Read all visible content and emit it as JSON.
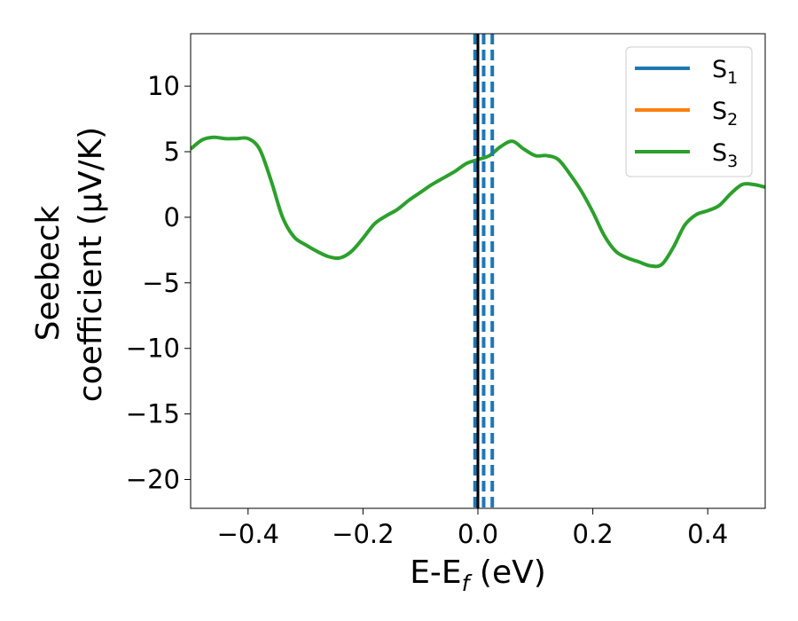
{
  "chart_data": {
    "type": "line",
    "title": "",
    "xlabel": {
      "main": "E-E",
      "sub": "f",
      "suffix": " (eV)"
    },
    "ylabel": {
      "line1": "Seebeck",
      "line2": "coefficient  (μV/K)"
    },
    "xlim": [
      -0.5,
      0.5
    ],
    "ylim": [
      -22.2,
      14.0
    ],
    "xticks": [
      {
        "value": -0.4,
        "label": "−0.4"
      },
      {
        "value": -0.2,
        "label": "−0.2"
      },
      {
        "value": 0.0,
        "label": "0.0"
      },
      {
        "value": 0.2,
        "label": "0.2"
      },
      {
        "value": 0.4,
        "label": "0.4"
      }
    ],
    "yticks": [
      {
        "value": 10,
        "label": "10"
      },
      {
        "value": 5,
        "label": "5"
      },
      {
        "value": 0,
        "label": "0"
      },
      {
        "value": -5,
        "label": "−5"
      },
      {
        "value": -10,
        "label": "−10"
      },
      {
        "value": -15,
        "label": "−15"
      },
      {
        "value": -20,
        "label": "−20"
      }
    ],
    "grid": false,
    "legend_position": "top-right",
    "series": [
      {
        "name": "S",
        "sub": "1",
        "color": "#1f77b4",
        "values": []
      },
      {
        "name": "S",
        "sub": "2",
        "color": "#ff7f0e",
        "values": []
      },
      {
        "name": "S",
        "sub": "3",
        "color": "#2ca02c",
        "x": [
          -0.5,
          -0.48,
          -0.46,
          -0.44,
          -0.42,
          -0.4,
          -0.38,
          -0.36,
          -0.34,
          -0.32,
          -0.3,
          -0.28,
          -0.26,
          -0.24,
          -0.22,
          -0.2,
          -0.18,
          -0.16,
          -0.14,
          -0.12,
          -0.1,
          -0.08,
          -0.06,
          -0.04,
          -0.02,
          0.0,
          0.02,
          0.04,
          0.06,
          0.08,
          0.1,
          0.12,
          0.14,
          0.16,
          0.18,
          0.2,
          0.22,
          0.24,
          0.26,
          0.28,
          0.3,
          0.32,
          0.34,
          0.36,
          0.38,
          0.4,
          0.42,
          0.44,
          0.46,
          0.48,
          0.5
        ],
        "values": [
          5.2,
          5.9,
          6.1,
          6.0,
          6.0,
          6.0,
          5.2,
          2.8,
          0.0,
          -1.5,
          -2.1,
          -2.6,
          -3.0,
          -3.1,
          -2.6,
          -1.6,
          -0.5,
          0.1,
          0.6,
          1.3,
          1.9,
          2.5,
          3.0,
          3.5,
          4.1,
          4.4,
          4.7,
          5.4,
          5.8,
          5.2,
          4.7,
          4.7,
          4.4,
          3.3,
          2.0,
          0.4,
          -1.4,
          -2.6,
          -3.1,
          -3.4,
          -3.7,
          -3.6,
          -2.3,
          -0.6,
          0.2,
          0.5,
          0.9,
          1.8,
          2.5,
          2.5,
          2.3
        ]
      }
    ],
    "vlines": [
      {
        "x": 0.0,
        "color": "#000000",
        "style": "solid"
      },
      {
        "x": -0.005,
        "color": "#1f77b4",
        "style": "dashed"
      },
      {
        "x": 0.01,
        "color": "#1f77b4",
        "style": "dashed"
      },
      {
        "x": 0.025,
        "color": "#1f77b4",
        "style": "dashed"
      }
    ]
  }
}
